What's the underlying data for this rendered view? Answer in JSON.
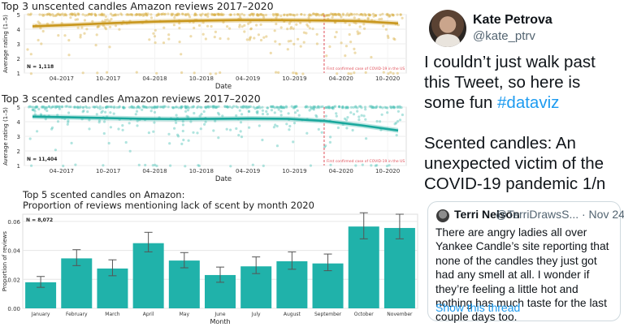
{
  "charts": {
    "unscented": {
      "title": "Top 3 unscented candles Amazon reviews 2017–2020",
      "ylabel": "Average rating (1–5)",
      "xlabel": "Date",
      "n_label": "N = 1,118",
      "covid_note": "First confirmed case of COVID-19 in the US",
      "x_ticks": [
        "04–2017",
        "10–2017",
        "04–2018",
        "10–2018",
        "04–2019",
        "10–2019",
        "04–2020",
        "10–2020"
      ],
      "y_ticks": [
        "1",
        "2",
        "3",
        "4",
        "5"
      ],
      "point_color": "#d9b24a",
      "trend_color": "#c9971e",
      "trend": [
        4.2,
        4.3,
        4.42,
        4.52,
        4.58,
        4.62,
        4.62,
        4.6,
        4.56,
        4.4
      ]
    },
    "scented": {
      "title": "Top 3 scented candles Amazon reviews 2017–2020",
      "ylabel": "Average rating (1–5)",
      "xlabel": "Date",
      "n_label": "N = 11,404",
      "covid_note": "First confirmed case of COVID-19 in the US",
      "x_ticks": [
        "04–2017",
        "10–2017",
        "04–2018",
        "10–2018",
        "04–2019",
        "10–2019",
        "04–2020",
        "10–2020"
      ],
      "y_ticks": [
        "1",
        "2",
        "3",
        "4",
        "5"
      ],
      "point_color": "#4fc4b8",
      "trend_color": "#1aa89d",
      "trend": [
        4.35,
        4.3,
        4.25,
        4.2,
        4.18,
        4.2,
        4.22,
        4.2,
        4.05,
        3.75,
        3.4
      ]
    },
    "bar": {
      "title_line1": "Top 5 scented candles on Amazon:",
      "title_line2": "Proportion of reviews mentioning lack of scent by month 2020",
      "ylabel": "Proportion of reviews",
      "xlabel": "Month",
      "n_label": "N = 8,072",
      "bar_color": "#20b2aa"
    }
  },
  "chart_data": {
    "type": "bar",
    "title": "Top 5 scented candles on Amazon: Proportion of reviews mentioning lack of scent by month 2020",
    "xlabel": "Month",
    "ylabel": "Proportion of reviews",
    "ylim": [
      0,
      0.065
    ],
    "y_ticks": [
      "0.00",
      "0.02",
      "0.04",
      "0.06"
    ],
    "categories": [
      "January",
      "February",
      "March",
      "April",
      "May",
      "June",
      "July",
      "August",
      "September",
      "October",
      "November"
    ],
    "values": [
      0.018,
      0.0345,
      0.0275,
      0.045,
      0.033,
      0.023,
      0.029,
      0.0325,
      0.031,
      0.0565,
      0.0555
    ],
    "err_low": [
      0.0145,
      0.0295,
      0.0225,
      0.039,
      0.028,
      0.018,
      0.024,
      0.027,
      0.026,
      0.048,
      0.048
    ],
    "err_high": [
      0.022,
      0.0405,
      0.0335,
      0.0525,
      0.0385,
      0.0285,
      0.0355,
      0.039,
      0.0375,
      0.066,
      0.065
    ],
    "grid": true
  },
  "tweet": {
    "author_name": "Kate Petrova",
    "author_handle": "@kate_ptrv",
    "text_part1": "I couldn’t just walk past this Tweet, so here is some fun ",
    "hashtag": "#dataviz",
    "text_part2": "Scented candles: An unexpected victim of the COVID-19 pandemic 1/n",
    "quoted": {
      "name": "Terri Nelson",
      "handle": "@TerriDrawsS... · Nov 24",
      "text": "There are angry ladies all over Yankee Candle’s site reporting that none of the candles they just got had any smell at all. I wonder if they’re feeling a little hot and nothing has much taste for the last couple days too.",
      "link": "Show this thread"
    }
  }
}
